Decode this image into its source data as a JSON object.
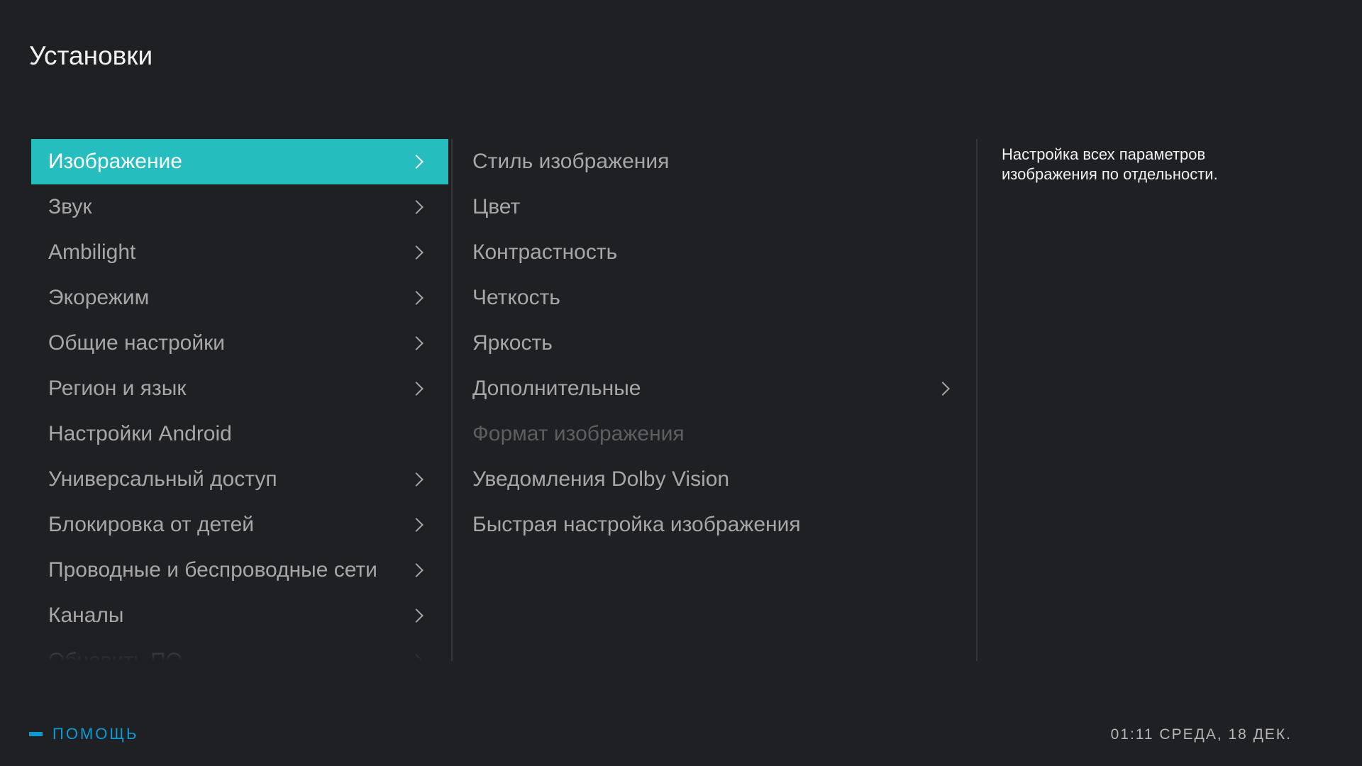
{
  "header": {
    "title": "Установки"
  },
  "colors": {
    "accent": "#25bdbd",
    "background": "#1f2023",
    "help": "#0a9bd3"
  },
  "left_menu": {
    "items": [
      {
        "label": "Изображение",
        "chevron": true,
        "selected": true
      },
      {
        "label": "Звук",
        "chevron": true
      },
      {
        "label": "Ambilight",
        "chevron": true
      },
      {
        "label": "Экорежим",
        "chevron": true
      },
      {
        "label": "Общие настройки",
        "chevron": true
      },
      {
        "label": "Регион и язык",
        "chevron": true
      },
      {
        "label": "Настройки Android",
        "chevron": false
      },
      {
        "label": "Универсальный доступ",
        "chevron": true
      },
      {
        "label": "Блокировка от детей",
        "chevron": true
      },
      {
        "label": "Проводные и беспроводные сети",
        "chevron": true
      },
      {
        "label": "Каналы",
        "chevron": true
      },
      {
        "label": "Обновить ПО",
        "chevron": true
      }
    ]
  },
  "sub_menu": {
    "items": [
      {
        "label": "Стиль изображения"
      },
      {
        "label": "Цвет"
      },
      {
        "label": "Контрастность"
      },
      {
        "label": "Четкость"
      },
      {
        "label": "Яркость"
      },
      {
        "label": "Дополнительные",
        "chevron": true
      },
      {
        "label": "Формат изображения",
        "disabled": true
      },
      {
        "label": "Уведомления Dolby Vision"
      },
      {
        "label": "Быстрая настройка изображения"
      }
    ]
  },
  "description": {
    "line1": "Настройка всех параметров",
    "line2": "изображения по отдельности."
  },
  "footer": {
    "help_label": "ПОМОЩЬ",
    "clock": "01:11 СРЕДА, 18 ДЕК."
  }
}
